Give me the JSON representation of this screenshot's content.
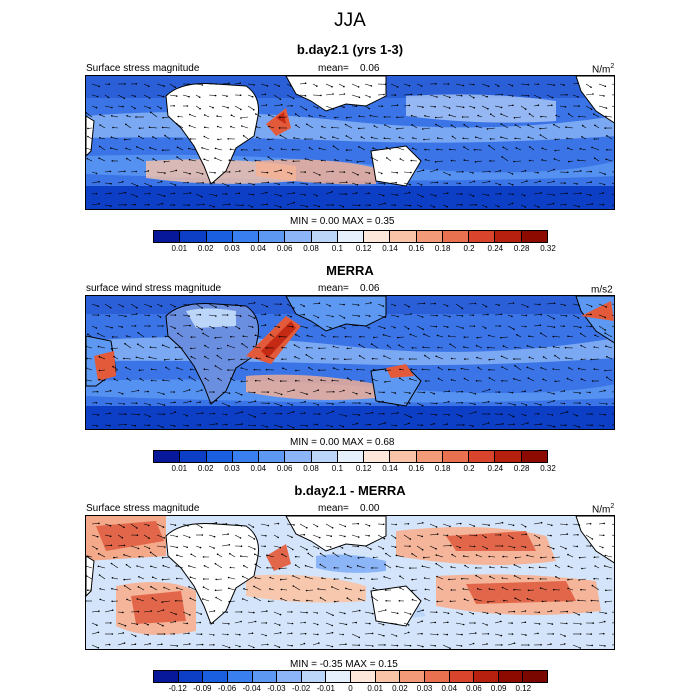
{
  "title": "JJA",
  "panels": [
    {
      "title": "b.day2.1 (yrs 1-3)",
      "left_label": "Surface stress magnitude",
      "mean_label": "mean=",
      "mean_value": "0.06",
      "units": "N/m",
      "units_sup": "2",
      "minmax": "MIN =   0.00 MAX =   0.35",
      "colorbar": {
        "ticks": [
          "0.01",
          "0.02",
          "0.03",
          "0.04",
          "0.06",
          "0.08",
          "0.1",
          "0.12",
          "0.14",
          "0.16",
          "0.18",
          "0.2",
          "0.24",
          "0.28",
          "0.32"
        ],
        "colors": [
          "#07189a",
          "#0c3fc6",
          "#1a5fe0",
          "#3a7ff0",
          "#5d99f2",
          "#8bb5f6",
          "#bcd6fa",
          "#e6f0fd",
          "#fde6da",
          "#f9c3a8",
          "#f39b79",
          "#ea7150",
          "#d8452c",
          "#b6200f",
          "#8c0a00"
        ]
      }
    },
    {
      "title": "MERRA",
      "left_label": "surface wind stress magnitude",
      "mean_label": "mean=",
      "mean_value": "0.06",
      "units": "m/s2",
      "units_sup": "",
      "minmax": "MIN =   0.00 MAX =   0.68",
      "colorbar": {
        "ticks": [
          "0.01",
          "0.02",
          "0.03",
          "0.04",
          "0.06",
          "0.08",
          "0.1",
          "0.12",
          "0.14",
          "0.16",
          "0.18",
          "0.2",
          "0.24",
          "0.28",
          "0.32"
        ],
        "colors": [
          "#07189a",
          "#0c3fc6",
          "#1a5fe0",
          "#3a7ff0",
          "#5d99f2",
          "#8bb5f6",
          "#bcd6fa",
          "#e6f0fd",
          "#fde6da",
          "#f9c3a8",
          "#f39b79",
          "#ea7150",
          "#d8452c",
          "#b6200f",
          "#8c0a00"
        ]
      }
    },
    {
      "title": "b.day2.1 - MERRA",
      "left_label": "Surface stress magnitude",
      "mean_label": "mean=",
      "mean_value": "0.00",
      "units": "N/m",
      "units_sup": "2",
      "minmax": "MIN =  -0.35 MAX =   0.15",
      "colorbar": {
        "ticks": [
          "-0.12",
          "-0.09",
          "-0.06",
          "-0.04",
          "-0.03",
          "-0.02",
          "-0.01",
          "0",
          "0.01",
          "0.02",
          "0.03",
          "0.04",
          "0.06",
          "0.09",
          "0.12"
        ],
        "colors": [
          "#07189a",
          "#0c3fc6",
          "#1a5fe0",
          "#3a7ff0",
          "#5d99f2",
          "#8bb5f6",
          "#bcd6fa",
          "#e6f0fd",
          "#fde6da",
          "#f9c3a8",
          "#f39b79",
          "#ea7150",
          "#d8452c",
          "#b6200f",
          "#8c0a00",
          "#7a0800"
        ]
      }
    }
  ],
  "palette": {
    "ocean_low": "#1f55d8",
    "ocean_mid": "#6aa3f2",
    "ocean_light": "#cfe2fb",
    "warm_light": "#f7c7ae",
    "warm": "#ea7150",
    "warm_dark": "#c42a14",
    "land": "#ffffff"
  }
}
